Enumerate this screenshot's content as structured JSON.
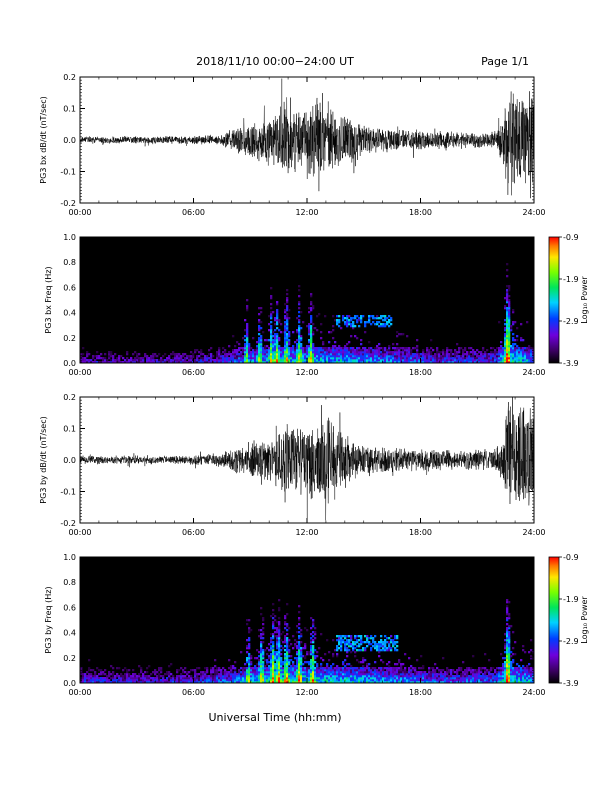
{
  "header": {
    "title": "2018/11/10   00:00−24:00  UT",
    "page": "Page 1/1"
  },
  "xlabel": "Universal Time (hh:mm)",
  "colorbar": {
    "label": "Log₁₀ Power",
    "ticks": [
      "-0.9",
      "-1.9",
      "-2.9",
      "-3.9"
    ]
  },
  "chart_data": [
    {
      "type": "line",
      "ylabel": "PG3 bx dB/dt (nT/sec)",
      "ylim": [
        -0.2,
        0.2
      ],
      "yticks": [
        "0.2",
        "0.1",
        "0.0",
        "-0.1",
        "-0.2"
      ],
      "xticks": [
        "00:00",
        "06:00",
        "12:00",
        "18:00",
        "24:00"
      ],
      "xlim_hours": [
        0,
        24
      ],
      "envelope": {
        "hours": [
          0,
          1,
          2,
          3,
          4,
          5,
          6,
          7,
          7.5,
          8,
          8.5,
          9,
          9.5,
          10,
          10.5,
          11,
          11.5,
          12,
          12.5,
          13,
          13.5,
          14,
          14.5,
          15,
          15.5,
          16,
          16.5,
          17,
          17.5,
          18,
          19,
          20,
          21,
          22,
          22.4,
          22.6,
          23,
          23.5,
          24
        ],
        "amplitude": [
          0.012,
          0.012,
          0.012,
          0.012,
          0.012,
          0.012,
          0.014,
          0.016,
          0.02,
          0.04,
          0.05,
          0.06,
          0.07,
          0.08,
          0.12,
          0.14,
          0.1,
          0.11,
          0.14,
          0.12,
          0.1,
          0.09,
          0.07,
          0.05,
          0.05,
          0.045,
          0.04,
          0.035,
          0.035,
          0.035,
          0.03,
          0.03,
          0.03,
          0.03,
          0.08,
          0.2,
          0.2,
          0.18,
          0.2
        ]
      }
    },
    {
      "type": "heatmap",
      "ylabel": "PG3 bx Freq (Hz)",
      "ylim": [
        0.0,
        1.0
      ],
      "yticks": [
        "1.0",
        "0.8",
        "0.6",
        "0.4",
        "0.2",
        "0.0"
      ],
      "xticks": [
        "00:00",
        "06:00",
        "12:00",
        "18:00",
        "24:00"
      ],
      "xlim_hours": [
        0,
        24
      ],
      "zlim": [
        -3.9,
        -0.9
      ],
      "zlabel": "Log₁₀ Power",
      "features": {
        "low_band_hours": [
          0,
          2,
          4,
          6,
          8,
          9,
          10,
          11,
          12,
          13,
          14,
          15,
          16,
          17,
          18,
          19,
          20,
          21,
          22,
          22.6,
          23,
          24
        ],
        "low_band_power": [
          -3.2,
          -3.3,
          -3.3,
          -3.2,
          -2.9,
          -2.6,
          -2.5,
          -2.3,
          -2.4,
          -2.4,
          -2.4,
          -2.5,
          -2.6,
          -2.7,
          -2.8,
          -2.9,
          -2.9,
          -2.9,
          -2.9,
          -1.6,
          -2.2,
          -2.6
        ],
        "broadband_bursts_hours": [
          8.8,
          9.5,
          10.1,
          10.4,
          10.9,
          11.6,
          12.2,
          22.6
        ],
        "mid_band_patch": {
          "hours": [
            13.5,
            16.5
          ],
          "freq_hz": [
            0.28,
            0.38
          ],
          "power": -2.7
        }
      }
    },
    {
      "type": "line",
      "ylabel": "PG3 by dB/dt (nT/sec)",
      "ylim": [
        -0.2,
        0.2
      ],
      "yticks": [
        "0.2",
        "0.1",
        "0.0",
        "-0.1",
        "-0.2"
      ],
      "xticks": [
        "00:00",
        "06:00",
        "12:00",
        "18:00",
        "24:00"
      ],
      "xlim_hours": [
        0,
        24
      ],
      "envelope": {
        "hours": [
          0,
          1,
          2,
          3,
          4,
          5,
          6,
          7,
          7.5,
          8,
          8.5,
          9,
          9.5,
          10,
          10.5,
          11,
          11.5,
          12,
          12.5,
          13,
          13.5,
          14,
          14.5,
          15,
          15.5,
          16,
          16.5,
          17,
          17.5,
          18,
          19,
          20,
          21,
          22,
          22.4,
          22.6,
          23,
          23.5,
          24
        ],
        "amplitude": [
          0.014,
          0.014,
          0.014,
          0.014,
          0.014,
          0.014,
          0.016,
          0.02,
          0.025,
          0.04,
          0.05,
          0.06,
          0.07,
          0.08,
          0.1,
          0.12,
          0.12,
          0.14,
          0.14,
          0.16,
          0.12,
          0.1,
          0.07,
          0.06,
          0.05,
          0.05,
          0.045,
          0.04,
          0.04,
          0.04,
          0.035,
          0.035,
          0.035,
          0.04,
          0.08,
          0.2,
          0.2,
          0.18,
          0.2
        ]
      }
    },
    {
      "type": "heatmap",
      "ylabel": "PG3 by Freq (Hz)",
      "ylim": [
        0.0,
        1.0
      ],
      "yticks": [
        "1.0",
        "0.8",
        "0.6",
        "0.4",
        "0.2",
        "0.0"
      ],
      "xticks": [
        "00:00",
        "06:00",
        "12:00",
        "18:00",
        "24:00"
      ],
      "xlim_hours": [
        0,
        24
      ],
      "zlim": [
        -3.9,
        -0.9
      ],
      "zlabel": "Log₁₀ Power",
      "features": {
        "low_band_hours": [
          0,
          2,
          4,
          6,
          8,
          9,
          10,
          11,
          12,
          13,
          14,
          15,
          16,
          17,
          18,
          19,
          20,
          21,
          22,
          22.6,
          23,
          24
        ],
        "low_band_power": [
          -3.0,
          -3.1,
          -3.1,
          -3.0,
          -2.7,
          -2.5,
          -2.2,
          -2.1,
          -2.2,
          -2.3,
          -2.3,
          -2.4,
          -2.5,
          -2.6,
          -2.7,
          -2.8,
          -2.8,
          -2.8,
          -2.8,
          -1.8,
          -2.2,
          -2.5
        ],
        "broadband_bursts_hours": [
          8.9,
          9.6,
          10.2,
          10.5,
          10.9,
          11.6,
          12.3,
          22.6
        ],
        "mid_band_patch": {
          "hours": [
            13.5,
            16.8
          ],
          "freq_hz": [
            0.26,
            0.38
          ],
          "power": -2.6
        }
      }
    }
  ]
}
